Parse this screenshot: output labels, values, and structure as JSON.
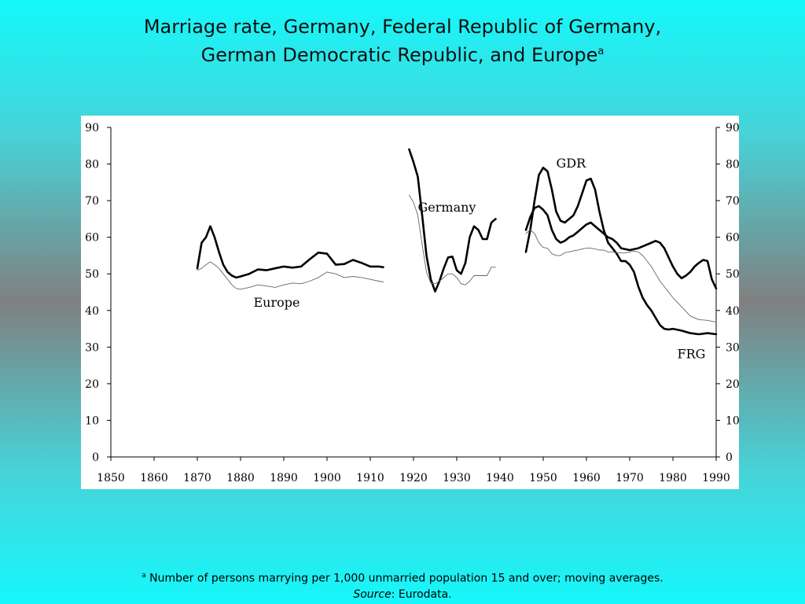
{
  "title": {
    "line1": "Marriage rate, Germany, Federal Republic of Germany,",
    "line2": "German Democratic Republic, and Europe",
    "superscript": "a"
  },
  "footnote": {
    "marker": "a",
    "text": " Number of persons marrying per 1,000 unmarried population 15 and over; moving averages.",
    "source_label": "Source",
    "source_text": ": Eurodata."
  },
  "chart_data": {
    "type": "line",
    "title": "",
    "xlabel": "",
    "ylabel": "",
    "xlim": [
      1850,
      1990
    ],
    "ylim": [
      0,
      90
    ],
    "x_ticks": [
      1850,
      1860,
      1870,
      1880,
      1890,
      1900,
      1910,
      1920,
      1930,
      1940,
      1950,
      1960,
      1970,
      1980,
      1990
    ],
    "y_ticks": [
      0,
      10,
      20,
      30,
      40,
      50,
      60,
      70,
      80,
      90
    ],
    "y_axis_sides": [
      "left",
      "right"
    ],
    "grid": false,
    "legend": "none",
    "annotations": [
      {
        "text": "Europe",
        "x": 1883,
        "y": 41
      },
      {
        "text": "Germany",
        "x": 1921,
        "y": 67
      },
      {
        "text": "GDR",
        "x": 1953,
        "y": 79
      },
      {
        "text": "FRG",
        "x": 1981,
        "y": 27
      }
    ],
    "series": [
      {
        "style": "thick",
        "segments": [
          {
            "x": [
              1870,
              1871,
              1872,
              1873,
              1874,
              1875,
              1876,
              1877,
              1878,
              1879,
              1880,
              1882,
              1884,
              1886,
              1888,
              1890,
              1892,
              1894,
              1896,
              1898,
              1900,
              1902,
              1904,
              1906,
              1908,
              1910,
              1912,
              1913
            ],
            "y": [
              51.5,
              58.5,
              60,
              63,
              60,
              56,
              52.5,
              50.5,
              49.5,
              49,
              49.3,
              50,
              51.2,
              51,
              51.5,
              52,
              51.7,
              52,
              54,
              55.8,
              55.5,
              52.5,
              52.7,
              53.8,
              53,
              52,
              52,
              51.8
            ]
          },
          {
            "x": [
              1919,
              1920,
              1921,
              1922,
              1923,
              1924,
              1925,
              1926,
              1927,
              1928,
              1929,
              1930,
              1931,
              1932,
              1933,
              1934,
              1935,
              1936,
              1937,
              1938,
              1939
            ],
            "y": [
              84,
              80.5,
              76.5,
              66,
              55,
              48.5,
              45.2,
              48,
              51.5,
              54.5,
              54.7,
              51,
              50,
              53,
              60,
              63,
              62,
              59.5,
              59.5,
              64,
              65
            ]
          },
          {
            "x": [
              1946,
              1947,
              1948,
              1949,
              1950,
              1951,
              1952,
              1953,
              1954,
              1955,
              1956,
              1957,
              1958,
              1959,
              1960,
              1961,
              1962,
              1963,
              1964,
              1965,
              1966,
              1967,
              1968,
              1969,
              1970,
              1971,
              1972,
              1973,
              1974,
              1975,
              1976,
              1977,
              1978,
              1979,
              1980,
              1982,
              1984,
              1986,
              1988,
              1990
            ],
            "y": [
              56,
              62,
              70,
              77,
              79,
              78,
              73,
              67,
              64.5,
              64,
              65,
              66,
              68.5,
              72,
              75.5,
              76,
              73,
              67,
              62,
              58.5,
              57,
              55.5,
              53.5,
              53.5,
              52.5,
              50.5,
              46.5,
              43.5,
              41.5,
              40,
              38,
              36,
              35,
              34.8,
              35,
              34.5,
              33.8,
              33.5,
              33.8,
              33.5
            ]
          },
          {
            "x": [
              1946,
              1947,
              1948,
              1949,
              1950,
              1951,
              1952,
              1953,
              1954,
              1955,
              1956,
              1957,
              1958,
              1959,
              1960,
              1961,
              1962,
              1963,
              1964,
              1965,
              1966,
              1967,
              1968,
              1970,
              1972,
              1974,
              1976,
              1977,
              1978,
              1979,
              1980,
              1981,
              1982,
              1983,
              1984,
              1985,
              1986,
              1987,
              1988,
              1989,
              1990
            ],
            "y": [
              62,
              65.5,
              68,
              68.5,
              67.5,
              66,
              62,
              59.5,
              58.5,
              59,
              60,
              60.5,
              61.5,
              62.5,
              63.5,
              64,
              63,
              62,
              61,
              60,
              59.5,
              58.5,
              57,
              56.5,
              57,
              58,
              59,
              58.5,
              57,
              54.5,
              52,
              50,
              48.8,
              49.5,
              50.5,
              52,
              53,
              53.8,
              53.5,
              48.5,
              46
            ]
          }
        ]
      },
      {
        "style": "thin",
        "segments": [
          {
            "x": [
              1870,
              1871,
              1872,
              1873,
              1874,
              1875,
              1876,
              1877,
              1878,
              1879,
              1880,
              1882,
              1884,
              1886,
              1888,
              1890,
              1892,
              1894,
              1896,
              1898,
              1900,
              1902,
              1904,
              1906,
              1908,
              1910,
              1912,
              1913
            ],
            "y": [
              51,
              51.5,
              52.5,
              53.3,
              52.5,
              51.5,
              50,
              48.5,
              47,
              46,
              45.8,
              46.3,
              47,
              46.7,
              46.3,
              47,
              47.5,
              47.3,
              48,
              49,
              50.5,
              50,
              49,
              49.3,
              49,
              48.5,
              48,
              47.8
            ]
          },
          {
            "x": [
              1919,
              1920,
              1921,
              1922,
              1923,
              1924,
              1925,
              1926,
              1927,
              1928,
              1929,
              1930,
              1931,
              1932,
              1933,
              1934,
              1935,
              1936,
              1937,
              1938,
              1939
            ],
            "y": [
              71.5,
              69.5,
              66,
              58,
              50.5,
              47.5,
              47.3,
              48,
              49,
              50,
              50,
              49,
              47.3,
              47,
              48,
              49.5,
              49.5,
              49.5,
              49.5,
              51.8,
              51.8
            ]
          },
          {
            "x": [
              1946,
              1947,
              1948,
              1949,
              1950,
              1951,
              1952,
              1953,
              1954,
              1955,
              1956,
              1957,
              1958,
              1959,
              1960,
              1961,
              1962,
              1963,
              1964,
              1965,
              1966,
              1967,
              1968,
              1969,
              1970,
              1971,
              1972,
              1973,
              1974,
              1975,
              1976,
              1977,
              1978,
              1979,
              1980,
              1982,
              1984,
              1986,
              1988,
              1990
            ],
            "y": [
              61,
              62,
              61,
              58.5,
              57.2,
              57,
              55.5,
              55,
              55,
              55.8,
              56,
              56.3,
              56.5,
              56.8,
              57,
              57,
              56.8,
              56.5,
              56.5,
              56,
              56,
              55.8,
              55.7,
              55.7,
              56,
              56.2,
              56,
              55,
              53.5,
              52,
              50,
              48,
              46.5,
              45,
              43.5,
              41,
              38.5,
              37.5,
              37.3,
              36.8
            ]
          }
        ]
      }
    ]
  }
}
